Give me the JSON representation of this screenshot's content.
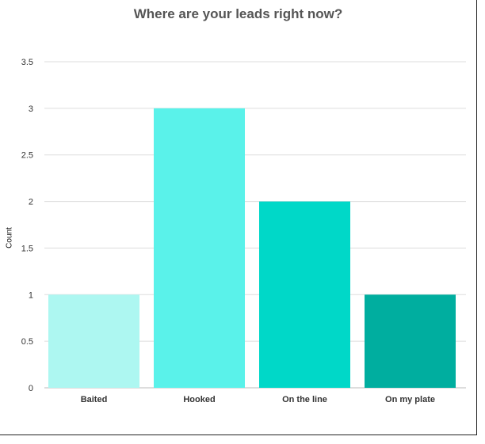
{
  "chart_data": {
    "type": "bar",
    "title": "Where are your leads right now?",
    "ylabel": "Count",
    "xlabel": "",
    "categories": [
      "Baited",
      "Hooked",
      "On the line",
      "On my plate"
    ],
    "values": [
      1,
      3,
      2,
      1
    ],
    "colors": [
      "#adf7f1",
      "#5af2ea",
      "#00d8c8",
      "#00ae9f"
    ],
    "ylim": [
      0,
      3.5
    ],
    "yticks": [
      "0",
      "0.5",
      "1",
      "1.5",
      "2",
      "2.5",
      "3",
      "3.5"
    ],
    "grid": true
  }
}
